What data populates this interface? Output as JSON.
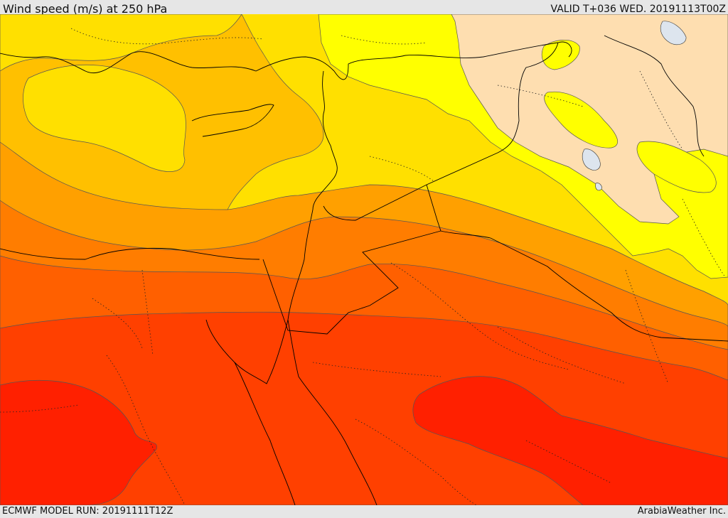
{
  "header": {
    "title": "Wind speed (m/s) at 250 hPa",
    "valid_time": "VALID T+036 WED. 20191113T00Z"
  },
  "footer": {
    "model_run": "ECMWF MODEL RUN: 20191111T12Z",
    "credit": "ArabiaWeather Inc."
  },
  "colors": {
    "band_light": "#fedeb0",
    "band_yellow": "#ffff00",
    "band_gold": "#ffe000",
    "band_amber": "#ffc000",
    "band_orange1": "#ffa000",
    "band_orange2": "#ff7d00",
    "band_orange3": "#ff6000",
    "band_redorange": "#ff4000",
    "band_red": "#ff2000",
    "lake": "#dde5ee"
  }
}
